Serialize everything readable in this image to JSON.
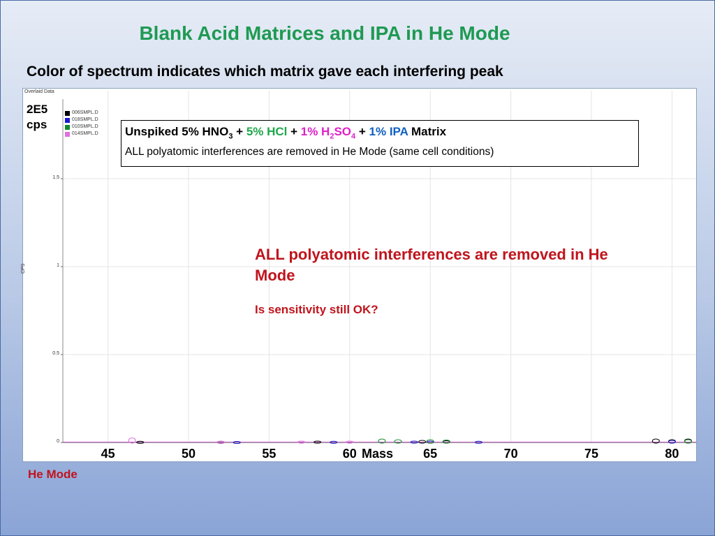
{
  "title": "Blank Acid Matrices and IPA in He Mode",
  "subtitle": "Color of spectrum indicates which matrix gave each interfering peak",
  "panel_caption": "Overlaid Data",
  "scale_label": [
    "2E5",
    "cps"
  ],
  "box": {
    "line1": [
      {
        "text": "Unspiked 5% HNO",
        "color": "#000000"
      },
      {
        "text": "3",
        "color": "#000000",
        "sub": true
      },
      {
        "text": " + ",
        "color": "#000000"
      },
      {
        "text": "5% HCl",
        "color": "#1ea64a"
      },
      {
        "text": " + ",
        "color": "#000000"
      },
      {
        "text": "1% H",
        "color": "#e020c8"
      },
      {
        "text": "2",
        "color": "#e020c8",
        "sub": true
      },
      {
        "text": "SO",
        "color": "#e020c8"
      },
      {
        "text": "4",
        "color": "#e020c8",
        "sub": true
      },
      {
        "text": " + ",
        "color": "#000000"
      },
      {
        "text": "1% IPA",
        "color": "#1060c0"
      },
      {
        "text": " Matrix",
        "color": "#000000"
      }
    ],
    "line2": "ALL polyatomic interferences are removed in He Mode (same cell conditions)"
  },
  "callout": "ALL polyatomic interferences are removed in He Mode",
  "question": "Is sensitivity still OK?",
  "mode_label": "He Mode",
  "chart_data": {
    "type": "line",
    "xlabel": "Mass",
    "ylabel": "CPS",
    "xlim": [
      42.2,
      81.5
    ],
    "ylim": [
      0,
      2
    ],
    "x_ticks": [
      45,
      50,
      55,
      60,
      65,
      70,
      75,
      80
    ],
    "y_ticks": [
      {
        "value": 0,
        "label": "0"
      },
      {
        "value": 0.5,
        "label": "0.5"
      },
      {
        "value": 1,
        "label": "1"
      },
      {
        "value": 1.5,
        "label": "1.5"
      }
    ],
    "grid": true,
    "legend": {
      "placement": "top-left",
      "entries": [
        {
          "name": "006SMPL.D",
          "color": "#000000"
        },
        {
          "name": "018SMPL.D",
          "color": "#1a1ad0"
        },
        {
          "name": "010SMPL.D",
          "color": "#128a2a"
        },
        {
          "name": "014SMPL.D",
          "color": "#e070e0"
        }
      ]
    },
    "series": [
      {
        "name": "006SMPL.D",
        "color": "#000000",
        "points": [
          [
            47,
            0.005
          ],
          [
            52,
            0.005
          ],
          [
            58,
            0.006
          ],
          [
            64.5,
            0.008
          ],
          [
            66,
            0.007
          ],
          [
            79,
            0.012
          ],
          [
            80,
            0.01
          ],
          [
            81,
            0.012
          ]
        ]
      },
      {
        "name": "018SMPL.D",
        "color": "#1a1ad0",
        "points": [
          [
            53,
            0.004
          ],
          [
            59,
            0.005
          ],
          [
            64,
            0.006
          ],
          [
            65,
            0.006
          ],
          [
            68,
            0.005
          ],
          [
            80,
            0.008
          ]
        ]
      },
      {
        "name": "010SMPL.D",
        "color": "#128a2a",
        "points": [
          [
            62,
            0.012
          ],
          [
            63,
            0.01
          ],
          [
            65,
            0.01
          ],
          [
            66,
            0.009
          ],
          [
            81,
            0.01
          ]
        ]
      },
      {
        "name": "014SMPL.D",
        "color": "#e070e0",
        "points": [
          [
            46.5,
            0.015
          ],
          [
            52,
            0.005
          ],
          [
            57,
            0.006
          ],
          [
            60,
            0.006
          ]
        ]
      }
    ]
  }
}
